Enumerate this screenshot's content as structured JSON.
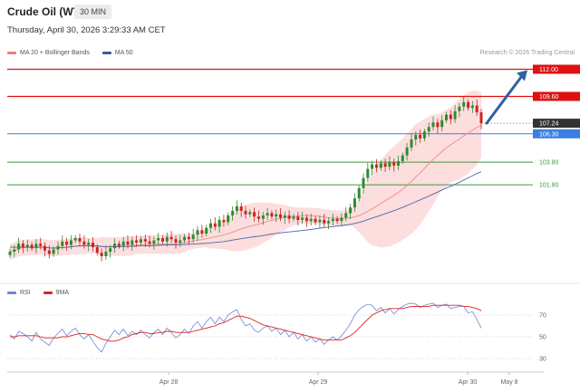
{
  "header": {
    "title": "Crude Oil (WTI)",
    "timeframe": "30 MIN",
    "date": "Thursday, April 30, 2026 3:29:33 AM CET"
  },
  "legend": {
    "items": [
      {
        "label": "MA 20 + Bollinger Bands",
        "color": "#f27a7a"
      },
      {
        "label": "MA 50",
        "color": "#3b5a9a"
      }
    ]
  },
  "credit": "Research © 2026 Trading Central",
  "rsi_legend": {
    "items": [
      {
        "label": "RSI",
        "color": "#6f86d6"
      },
      {
        "label": "9MA",
        "color": "#dd2222"
      }
    ]
  },
  "colors": {
    "up": "#2f8a2f",
    "down": "#cc2222",
    "resistance": "#dd1111",
    "support": "#3d9a3d",
    "pivot": "#3d7fe0",
    "current": "#333333",
    "arrow": "#3060a0",
    "band": "#fbd8d8"
  },
  "chart_data": [
    {
      "type": "candlestick",
      "x_labels": [
        "Apr 28",
        "Apr 29",
        "Apr 30",
        "May 8"
      ],
      "y_range": [
        93.5,
        113.0
      ],
      "levels": [
        {
          "value": 112.0,
          "label": "112.00",
          "kind": "resistance"
        },
        {
          "value": 109.6,
          "label": "109.60",
          "kind": "resistance"
        },
        {
          "value": 107.24,
          "label": "107.24",
          "kind": "current"
        },
        {
          "value": 106.3,
          "label": "106.30",
          "kind": "pivot"
        },
        {
          "value": 103.8,
          "label": "103.80",
          "kind": "support"
        },
        {
          "value": 101.8,
          "label": "101.80",
          "kind": "support"
        }
      ],
      "target_arrow": {
        "from": 107.24,
        "to": 112.0
      },
      "close": [
        95.9,
        96.1,
        96.6,
        96.3,
        96.5,
        96.2,
        96.6,
        96.4,
        96.0,
        95.7,
        96.1,
        96.4,
        96.8,
        96.5,
        96.9,
        97.1,
        96.8,
        96.5,
        96.7,
        96.3,
        95.8,
        95.5,
        95.9,
        96.2,
        96.6,
        96.4,
        96.8,
        96.5,
        96.9,
        96.7,
        97.0,
        96.8,
        96.6,
        96.9,
        97.1,
        96.8,
        97.2,
        97.0,
        96.7,
        96.9,
        97.2,
        97.0,
        97.4,
        97.8,
        97.5,
        98.0,
        98.4,
        98.1,
        98.7,
        98.5,
        99.1,
        99.5,
        99.9,
        99.5,
        99.2,
        99.4,
        99.0,
        98.8,
        99.1,
        99.3,
        99.0,
        99.2,
        98.9,
        99.1,
        98.8,
        99.0,
        98.7,
        98.9,
        98.6,
        98.8,
        98.5,
        98.7,
        98.4,
        98.6,
        98.8,
        98.6,
        98.9,
        99.3,
        99.8,
        100.6,
        101.5,
        102.4,
        103.2,
        103.6,
        103.3,
        103.7,
        103.4,
        103.8,
        103.5,
        103.9,
        104.4,
        105.1,
        105.8,
        106.2,
        105.9,
        106.5,
        106.9,
        107.3,
        106.9,
        107.5,
        108.0,
        107.6,
        108.3,
        108.7,
        109.1,
        108.6,
        108.8,
        108.2,
        107.24
      ]
    },
    {
      "type": "line",
      "name": "RSI",
      "y_ticks": [
        30,
        50,
        70
      ],
      "y_range": [
        20,
        85
      ],
      "series": [
        {
          "name": "RSI",
          "values": [
            52,
            48,
            55,
            53,
            50,
            46,
            54,
            48,
            45,
            42,
            49,
            53,
            57,
            51,
            55,
            58,
            52,
            48,
            52,
            46,
            40,
            36,
            44,
            50,
            56,
            52,
            57,
            51,
            55,
            52,
            56,
            52,
            49,
            54,
            57,
            52,
            58,
            54,
            49,
            52,
            57,
            53,
            60,
            64,
            58,
            64,
            68,
            62,
            68,
            64,
            70,
            73,
            75,
            66,
            60,
            62,
            56,
            54,
            58,
            60,
            55,
            58,
            52,
            56,
            50,
            54,
            48,
            52,
            46,
            50,
            45,
            48,
            43,
            47,
            50,
            47,
            51,
            56,
            62,
            70,
            75,
            78,
            80,
            79,
            74,
            77,
            72,
            76,
            71,
            75,
            78,
            80,
            81,
            80,
            77,
            79,
            80,
            81,
            77,
            79,
            80,
            76,
            77,
            78,
            78,
            72,
            73,
            66,
            58
          ]
        },
        {
          "name": "9MA",
          "values": [
            50,
            50,
            51,
            51,
            51,
            51,
            51,
            50,
            49,
            49,
            49,
            49,
            50,
            50,
            51,
            52,
            53,
            53,
            52,
            52,
            50,
            48,
            47,
            46,
            46,
            47,
            49,
            50,
            52,
            53,
            54,
            54,
            53,
            53,
            54,
            54,
            55,
            55,
            54,
            54,
            54,
            54,
            55,
            56,
            57,
            58,
            59,
            60,
            62,
            63,
            65,
            67,
            69,
            69,
            68,
            67,
            65,
            63,
            61,
            60,
            59,
            58,
            57,
            56,
            55,
            54,
            53,
            52,
            51,
            50,
            49,
            48,
            47,
            47,
            47,
            47,
            47,
            49,
            51,
            54,
            58,
            62,
            66,
            70,
            72,
            74,
            75,
            76,
            76,
            76,
            76,
            77,
            78,
            78,
            78,
            78,
            78,
            79,
            79,
            79,
            79,
            79,
            79,
            79,
            78,
            78,
            77,
            76,
            74
          ]
        }
      ]
    }
  ]
}
